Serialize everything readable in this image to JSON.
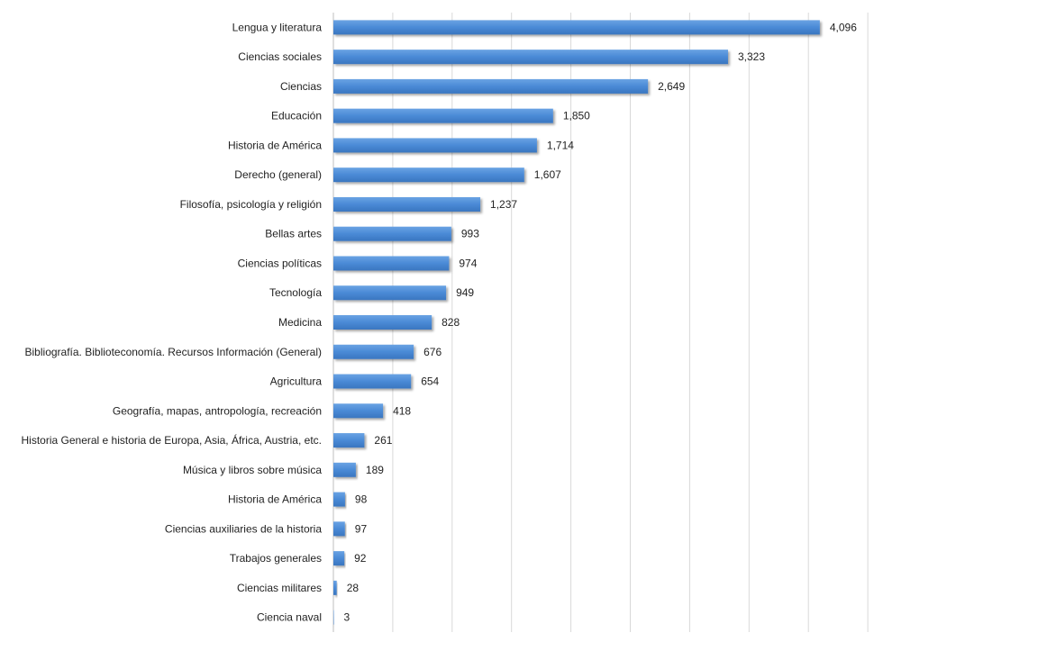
{
  "chart_data": {
    "type": "bar",
    "orientation": "horizontal",
    "categories": [
      "Lengua y literatura",
      "Ciencias sociales",
      "Ciencias",
      "Educación",
      "Historia de América",
      "Derecho (general)",
      "Filosofía, psicología y religión",
      "Bellas artes",
      "Ciencias políticas",
      "Tecnología",
      "Medicina",
      "Bibliografía. Biblioteconomía. Recursos Información (General)",
      "Agricultura",
      "Geografía, mapas, antropología, recreación",
      "Historia General e historia de Europa, Asia, África, Austria, etc.",
      "Música y libros sobre música",
      "Historia de América",
      "Ciencias auxiliaries de la historia",
      "Trabajos generales",
      "Ciencias militares",
      "Ciencia naval"
    ],
    "values": [
      4096,
      3323,
      2649,
      1850,
      1714,
      1607,
      1237,
      993,
      974,
      949,
      828,
      676,
      654,
      418,
      261,
      189,
      98,
      97,
      92,
      28,
      3
    ],
    "value_labels": [
      "4,096",
      "3,323",
      "2,649",
      "1,850",
      "1,714",
      "1,607",
      "1,237",
      "993",
      "974",
      "949",
      "828",
      "676",
      "654",
      "418",
      "261",
      "189",
      "98",
      "97",
      "92",
      "28",
      "3"
    ],
    "xlim": [
      0,
      4500
    ],
    "gridline_step": 500,
    "grid": true,
    "legend": "none",
    "bar_color": "#4a8ad6"
  }
}
